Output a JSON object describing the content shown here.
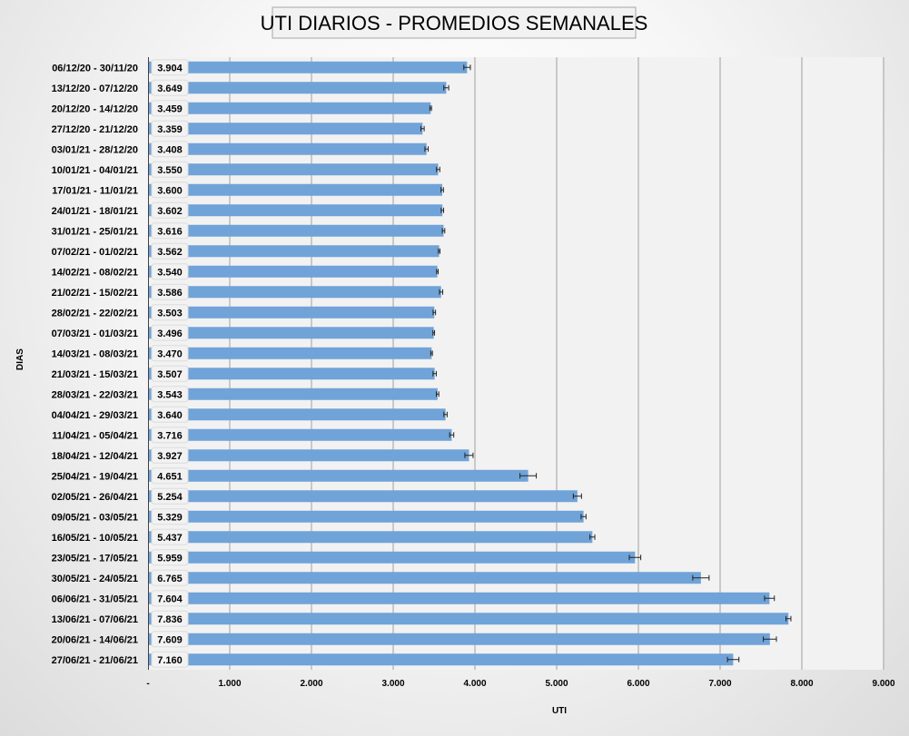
{
  "chart_data": {
    "type": "bar",
    "orientation": "horizontal",
    "title": "UTI DIARIOS - PROMEDIOS SEMANALES",
    "xlabel": "UTI",
    "ylabel": "DIAS",
    "xlim": [
      0,
      9000
    ],
    "grid": true,
    "bar_color": "#70a3d8",
    "plot_background": "#f2f2f2",
    "categories": [
      "06/12/20 - 30/11/20",
      "13/12/20 - 07/12/20",
      "20/12/20 - 14/12/20",
      "27/12/20 - 21/12/20",
      "03/01/21 - 28/12/20",
      "10/01/21 - 04/01/21",
      "17/01/21 - 11/01/21",
      "24/01/21 - 18/01/21",
      "31/01/21 - 25/01/21",
      "07/02/21 - 01/02/21",
      "14/02/21 - 08/02/21",
      "21/02/21 - 15/02/21",
      "28/02/21 - 22/02/21",
      "07/03/21 - 01/03/21",
      "14/03/21 - 08/03/21",
      "21/03/21 - 15/03/21",
      "28/03/21 - 22/03/21",
      "04/04/21 - 29/03/21",
      "11/04/21 - 05/04/21",
      "18/04/21 - 12/04/21",
      "25/04/21 - 19/04/21",
      "02/05/21 - 26/04/21",
      "09/05/21 - 03/05/21",
      "16/05/21 - 10/05/21",
      "23/05/21 - 17/05/21",
      "30/05/21 - 24/05/21",
      "06/06/21 - 31/05/21",
      "13/06/21 - 07/06/21",
      "20/06/21 - 14/06/21",
      "27/06/21 - 21/06/21"
    ],
    "values": [
      3904,
      3649,
      3459,
      3359,
      3408,
      3550,
      3600,
      3602,
      3616,
      3562,
      3540,
      3586,
      3503,
      3496,
      3470,
      3507,
      3543,
      3640,
      3716,
      3927,
      4651,
      5254,
      5329,
      5437,
      5959,
      6765,
      7604,
      7836,
      7609,
      7160
    ],
    "value_labels": [
      "3.904",
      "3.649",
      "3.459",
      "3.359",
      "3.408",
      "3.550",
      "3.600",
      "3.602",
      "3.616",
      "3.562",
      "3.540",
      "3.586",
      "3.503",
      "3.496",
      "3.470",
      "3.507",
      "3.543",
      "3.640",
      "3.716",
      "3.927",
      "4.651",
      "5.254",
      "5.329",
      "5.437",
      "5.959",
      "6.765",
      "7.604",
      "7.836",
      "7.609",
      "7.160"
    ],
    "error_bars": [
      40,
      30,
      10,
      20,
      20,
      20,
      15,
      15,
      15,
      10,
      10,
      20,
      15,
      10,
      10,
      20,
      15,
      20,
      25,
      50,
      100,
      50,
      30,
      30,
      70,
      100,
      60,
      30,
      80,
      70
    ],
    "x_ticks": [
      0,
      1000,
      2000,
      3000,
      4000,
      5000,
      6000,
      7000,
      8000,
      9000
    ],
    "x_tick_labels": [
      "-",
      "1.000",
      "2.000",
      "3.000",
      "4.000",
      "5.000",
      "6.000",
      "7.000",
      "8.000",
      "9.000"
    ]
  }
}
